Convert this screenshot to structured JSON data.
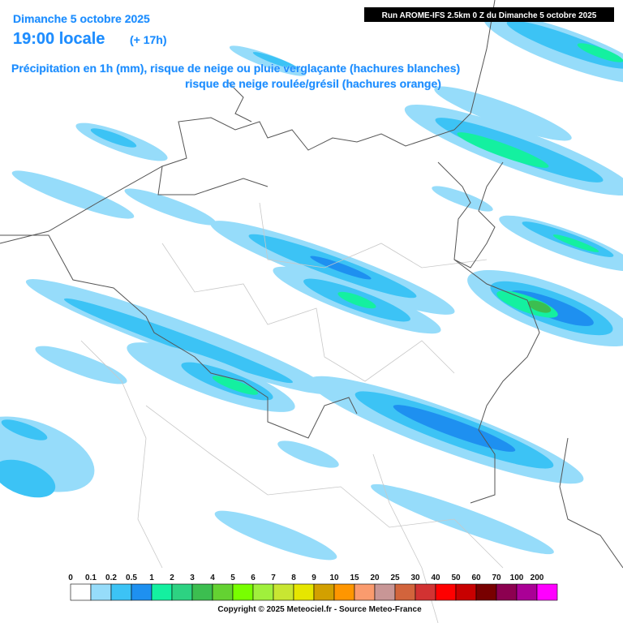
{
  "header": {
    "date": "Dimanche 5 octobre 2025",
    "time": "19:00 locale",
    "lead": "(+ 17h)",
    "description_1": "Précipitation en 1h (mm), risque de neige ou pluie verglaçante (hachures blanches)",
    "description_2": "risque de neige roulée/grésil (hachures orange)",
    "run": "Run AROME-IFS 2.5km 0 Z du Dimanche 5 octobre 2025"
  },
  "legend": {
    "items": [
      {
        "label": "0",
        "color": "#ffffff"
      },
      {
        "label": "0.1",
        "color": "#96dcfa"
      },
      {
        "label": "0.2",
        "color": "#3cc3f5"
      },
      {
        "label": "0.5",
        "color": "#1e90f0"
      },
      {
        "label": "1",
        "color": "#14f0a0"
      },
      {
        "label": "2",
        "color": "#2dd282"
      },
      {
        "label": "3",
        "color": "#3cbe50"
      },
      {
        "label": "4",
        "color": "#64d232"
      },
      {
        "label": "5",
        "color": "#78ff00"
      },
      {
        "label": "6",
        "color": "#a0f03c"
      },
      {
        "label": "7",
        "color": "#c8e632"
      },
      {
        "label": "8",
        "color": "#e6e600"
      },
      {
        "label": "9",
        "color": "#d2a000"
      },
      {
        "label": "10",
        "color": "#ff9600"
      },
      {
        "label": "15",
        "color": "#fa9b6e"
      },
      {
        "label": "20",
        "color": "#c89696"
      },
      {
        "label": "25",
        "color": "#d2643c"
      },
      {
        "label": "30",
        "color": "#d23232"
      },
      {
        "label": "40",
        "color": "#ff0000"
      },
      {
        "label": "50",
        "color": "#c80000"
      },
      {
        "label": "60",
        "color": "#780000"
      },
      {
        "label": "70",
        "color": "#8c0050"
      },
      {
        "label": "100",
        "color": "#aa0096"
      },
      {
        "label": "200",
        "color": "#ff00ff"
      }
    ]
  },
  "footer": {
    "copyright": "Copyright © 2025 Meteociel.fr - Source Meteo-France"
  }
}
